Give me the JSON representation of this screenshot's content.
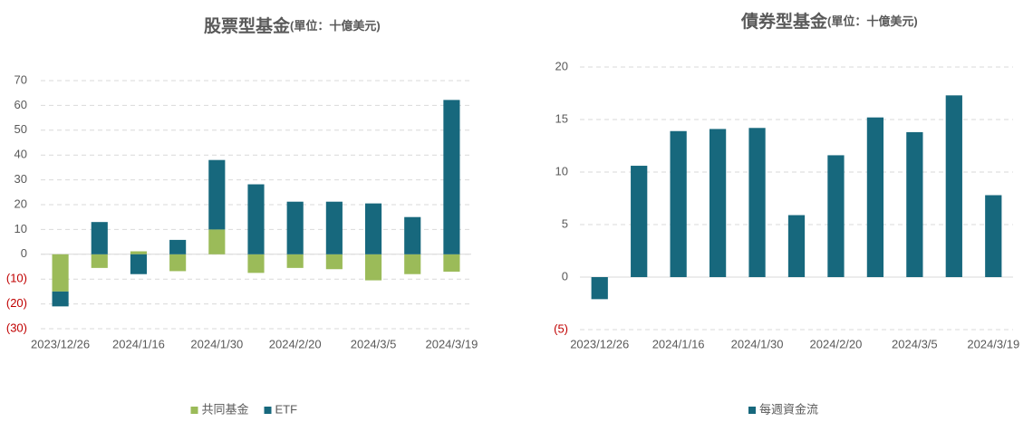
{
  "chart_data": [
    {
      "type": "bar",
      "stacked": true,
      "title": "股票型基金",
      "subtitle": "(單位：十億美元)",
      "categories": [
        "2023/12/26",
        null,
        "2024/1/16",
        null,
        "2024/1/30",
        null,
        "2024/2/20",
        null,
        "2024/3/5",
        null,
        "2024/3/19"
      ],
      "series": [
        {
          "name": "共同基金",
          "color": "#9bbb59",
          "values": [
            -15,
            -5.5,
            1.2,
            -6.8,
            10,
            -7.5,
            -5.5,
            -6,
            -10.5,
            -8,
            -7
          ]
        },
        {
          "name": "ETF",
          "color": "#17687d",
          "values": [
            -6,
            13,
            -8,
            5.8,
            28,
            28.2,
            21.2,
            21.2,
            20.5,
            15,
            62.2
          ]
        }
      ],
      "ylim": [
        -30,
        70
      ],
      "yticks": [
        {
          "value": -30,
          "label": "(30)"
        },
        {
          "value": -20,
          "label": "(20)"
        },
        {
          "value": -10,
          "label": "(10)"
        },
        0,
        10,
        20,
        30,
        40,
        50,
        60,
        70
      ],
      "negative_tick_color": "#c00000",
      "grid": true,
      "legend": "bottom"
    },
    {
      "type": "bar",
      "stacked": false,
      "title": "債券型基金",
      "subtitle": "(單位：十億美元)",
      "categories": [
        "2023/12/26",
        null,
        "2024/1/16",
        null,
        "2024/1/30",
        null,
        "2024/2/20",
        null,
        "2024/3/5",
        null,
        "2024/3/19"
      ],
      "series": [
        {
          "name": "每週資金流",
          "color": "#17687d",
          "values": [
            -2.1,
            10.6,
            13.9,
            14.1,
            14.2,
            5.9,
            11.6,
            15.2,
            13.8,
            17.3,
            7.8
          ]
        }
      ],
      "ylim": [
        -5,
        20
      ],
      "yticks": [
        {
          "value": -5,
          "label": "(5)"
        },
        0,
        5,
        10,
        15,
        20
      ],
      "negative_tick_color": "#c00000",
      "grid": true,
      "legend": "bottom"
    }
  ]
}
